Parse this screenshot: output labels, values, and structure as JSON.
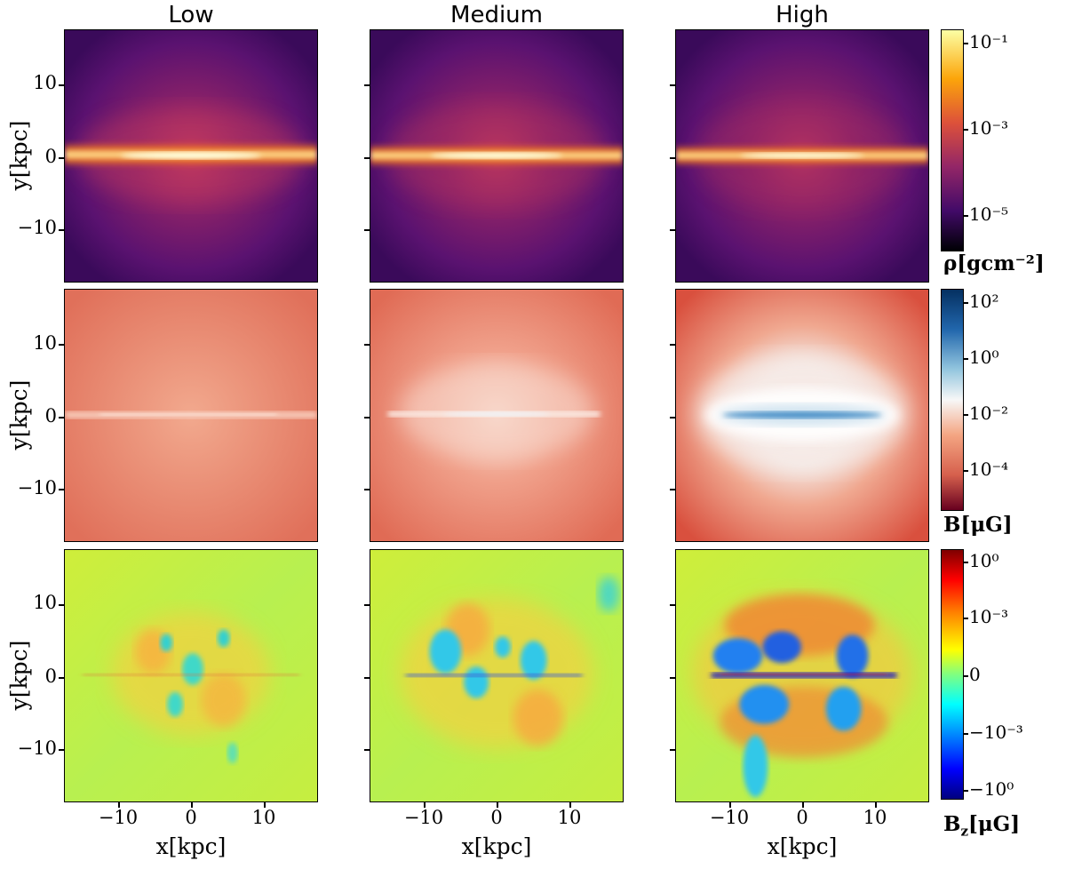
{
  "chart_data": {
    "type": "heatmap",
    "columns": [
      "Low",
      "Medium",
      "High"
    ],
    "xlabel": "x[kpc]",
    "ylabel": "y[kpc]",
    "xlim": [
      -17.5,
      17.5
    ],
    "ylim": [
      -17.5,
      17.5
    ],
    "xticks": [
      "−10",
      "0",
      "10"
    ],
    "yticks": [
      "10",
      "0",
      "−10"
    ],
    "rows": [
      {
        "quantity": "density",
        "colorbar_label": "ρ[gcm⁻²]",
        "colorbar_ticks": [
          "10⁻¹",
          "10⁻³",
          "10⁻⁵"
        ],
        "colormap": [
          "#fcffa4",
          "#fca50a",
          "#dd513a",
          "#932667",
          "#420a68",
          "#000004"
        ]
      },
      {
        "quantity": "magnetic field strength",
        "colorbar_label": "B[μG]",
        "colorbar_ticks": [
          "10²",
          "10⁰",
          "10⁻²",
          "10⁻⁴"
        ],
        "colormap": [
          "#053061",
          "#2166ac",
          "#92c5de",
          "#f7f7f7",
          "#f4a582",
          "#d6604d",
          "#67001f"
        ]
      },
      {
        "quantity": "vertical magnetic field",
        "colorbar_label": "B_z[μG]",
        "colorbar_label_main": "B",
        "colorbar_label_sub": "z",
        "colorbar_label_unit": "[μG]",
        "colorbar_ticks": [
          "10⁰",
          "10⁻³",
          "0",
          "−10⁻³",
          "−10⁰"
        ],
        "colormap": [
          "#7f0000",
          "#ff0000",
          "#ff8000",
          "#ffff00",
          "#80ff80",
          "#00ffff",
          "#0080ff",
          "#0000ff",
          "#00007f"
        ]
      }
    ]
  }
}
